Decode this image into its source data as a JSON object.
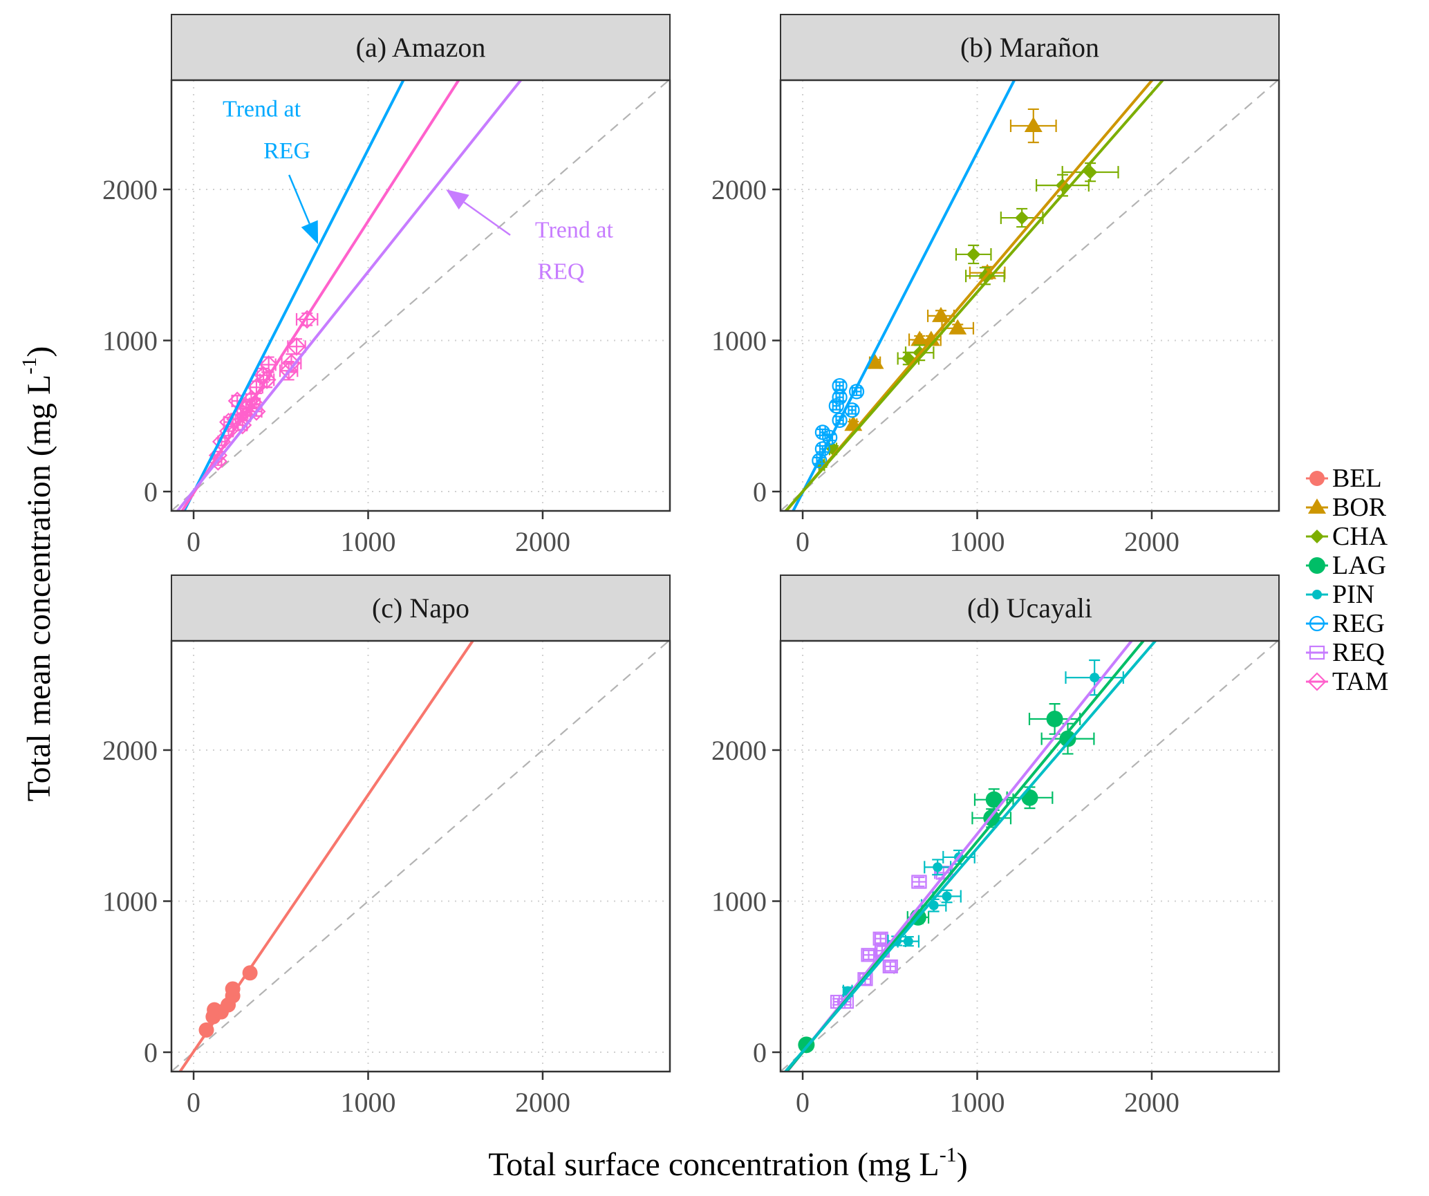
{
  "chart_data": {
    "type": "scatter",
    "layout": "2x2 faceted panels",
    "xlabel": "Total surface concentration (mg L",
    "xlabel_sup": "-1",
    "xlabel_tail": ")",
    "ylabel": "Total mean concentration  (mg L",
    "ylabel_sup": "-1",
    "ylabel_tail": ")",
    "xlim": [
      -127,
      2729
    ],
    "ylim": [
      -128,
      2723
    ],
    "xticks": [
      0,
      1000,
      2000
    ],
    "yticks": [
      0,
      1000,
      2000
    ],
    "grid": true,
    "identity_line": {
      "slope": 1,
      "intercept": 0,
      "style": "dashed",
      "color": "#b3b3b3"
    },
    "legend": {
      "position": "right",
      "entries": [
        {
          "label": "BEL",
          "color": "#F8766D",
          "shape": "circle-filled"
        },
        {
          "label": "BOR",
          "color": "#CD9600",
          "shape": "triangle-filled"
        },
        {
          "label": "CHA",
          "color": "#7CAE00",
          "shape": "diamond-filled"
        },
        {
          "label": "LAG",
          "color": "#00BE67",
          "shape": "circle-filled-large"
        },
        {
          "label": "PIN",
          "color": "#00BFC4",
          "shape": "circle-filled-small"
        },
        {
          "label": "REG",
          "color": "#00A9FF",
          "shape": "circle-open"
        },
        {
          "label": "REQ",
          "color": "#C77CFF",
          "shape": "square-open"
        },
        {
          "label": "TAM",
          "color": "#FF61CC",
          "shape": "diamond-open"
        }
      ]
    },
    "panels": [
      {
        "title": "(a) Amazon",
        "trends": [
          {
            "station": "REG",
            "slope": 2.27,
            "intercept": -5
          },
          {
            "station": "TAM",
            "slope": 1.8,
            "intercept": -10
          },
          {
            "station": "REQ",
            "slope": 1.45,
            "intercept": 5
          }
        ],
        "series": [
          {
            "station": "TAM",
            "points": [
              {
                "x": 650,
                "y": 1140,
                "xerr": 60,
                "yerr": 40
              },
              {
                "x": 590,
                "y": 960,
                "xerr": 50,
                "yerr": 50
              },
              {
                "x": 560,
                "y": 850,
                "xerr": 55,
                "yerr": 60
              },
              {
                "x": 545,
                "y": 800,
                "xerr": 50,
                "yerr": 60
              },
              {
                "x": 430,
                "y": 840,
                "xerr": 40,
                "yerr": 50
              },
              {
                "x": 420,
                "y": 740,
                "xerr": 40,
                "yerr": 50
              },
              {
                "x": 360,
                "y": 690,
                "xerr": 35,
                "yerr": 40
              },
              {
                "x": 400,
                "y": 770,
                "xerr": 35,
                "yerr": 45
              },
              {
                "x": 330,
                "y": 610,
                "xerr": 30,
                "yerr": 35
              },
              {
                "x": 300,
                "y": 560,
                "xerr": 30,
                "yerr": 35
              },
              {
                "x": 280,
                "y": 520,
                "xerr": 30,
                "yerr": 30
              },
              {
                "x": 250,
                "y": 600,
                "xerr": 30,
                "yerr": 35
              },
              {
                "x": 240,
                "y": 480,
                "xerr": 25,
                "yerr": 30
              },
              {
                "x": 280,
                "y": 440,
                "xerr": 25,
                "yerr": 30
              },
              {
                "x": 200,
                "y": 460,
                "xerr": 25,
                "yerr": 30
              },
              {
                "x": 200,
                "y": 400,
                "xerr": 25,
                "yerr": 30
              },
              {
                "x": 160,
                "y": 330,
                "xerr": 20,
                "yerr": 25
              },
              {
                "x": 140,
                "y": 240,
                "xerr": 20,
                "yerr": 25
              },
              {
                "x": 140,
                "y": 200,
                "xerr": 20,
                "yerr": 25
              },
              {
                "x": 300,
                "y": 500,
                "xerr": 25,
                "yerr": 30
              },
              {
                "x": 350,
                "y": 580,
                "xerr": 30,
                "yerr": 30
              },
              {
                "x": 360,
                "y": 530,
                "xerr": 30,
                "yerr": 30
              }
            ]
          }
        ],
        "annotations": [
          {
            "text_line1": "Trend at",
            "text_line2": "REG",
            "color": "#00A9FF",
            "line1_at": {
              "x": 390,
              "y": 2530
            },
            "line2_at": {
              "x": 535,
              "y": 2255
            },
            "arrow_from": {
              "x": 547,
              "y": 2096
            },
            "arrow_to": {
              "x": 713,
              "y": 1638
            }
          },
          {
            "text_line1": "Trend at",
            "text_line2": "REQ",
            "color": "#C77CFF",
            "line1_at": {
              "x": 2180,
              "y": 1730
            },
            "line2_at": {
              "x": 2105,
              "y": 1455
            },
            "arrow_from": {
              "x": 1814,
              "y": 1698
            },
            "arrow_to": {
              "x": 1446,
              "y": 2000
            }
          }
        ]
      },
      {
        "title": "(b) Marañon",
        "trends": [
          {
            "station": "REG",
            "slope": 2.25,
            "intercept": -5
          },
          {
            "station": "BOR",
            "slope": 1.36,
            "intercept": 0
          },
          {
            "station": "CHA",
            "slope": 1.32,
            "intercept": 0
          }
        ],
        "series": [
          {
            "station": "BOR",
            "points": [
              {
                "x": 1322,
                "y": 2421,
                "xerr": 130,
                "yerr": 110
              },
              {
                "x": 792,
                "y": 1163,
                "xerr": 75,
                "yerr": 35
              },
              {
                "x": 888,
                "y": 1081,
                "xerr": 90,
                "yerr": 25
              },
              {
                "x": 670,
                "y": 1005,
                "xerr": 60,
                "yerr": 25
              },
              {
                "x": 736,
                "y": 1005,
                "xerr": 55,
                "yerr": 25
              },
              {
                "x": 1058,
                "y": 1448,
                "xerr": 100,
                "yerr": 40
              },
              {
                "x": 414,
                "y": 853,
                "xerr": 30,
                "yerr": 20
              },
              {
                "x": 290,
                "y": 443,
                "xerr": 20,
                "yerr": 20
              }
            ]
          },
          {
            "station": "CHA",
            "points": [
              {
                "x": 1648,
                "y": 2114,
                "xerr": 160,
                "yerr": 60
              },
              {
                "x": 1489,
                "y": 2027,
                "xerr": 150,
                "yerr": 70
              },
              {
                "x": 1256,
                "y": 1812,
                "xerr": 120,
                "yerr": 60
              },
              {
                "x": 979,
                "y": 1570,
                "xerr": 100,
                "yerr": 60
              },
              {
                "x": 1045,
                "y": 1427,
                "xerr": 110,
                "yerr": 55
              },
              {
                "x": 605,
                "y": 881,
                "xerr": 60,
                "yerr": 40
              },
              {
                "x": 670,
                "y": 919,
                "xerr": 80,
                "yerr": 50
              },
              {
                "x": 174,
                "y": 282,
                "xerr": 20,
                "yerr": 20
              },
              {
                "x": 109,
                "y": 177,
                "xerr": 15,
                "yerr": 15
              }
            ]
          },
          {
            "station": "REG",
            "points": [
              {
                "x": 212,
                "y": 700,
                "xerr": 20,
                "yerr": 25
              },
              {
                "x": 309,
                "y": 662,
                "xerr": 25,
                "yerr": 25
              },
              {
                "x": 212,
                "y": 624,
                "xerr": 20,
                "yerr": 25
              },
              {
                "x": 193,
                "y": 567,
                "xerr": 20,
                "yerr": 25
              },
              {
                "x": 283,
                "y": 539,
                "xerr": 20,
                "yerr": 25
              },
              {
                "x": 212,
                "y": 472,
                "xerr": 20,
                "yerr": 25
              },
              {
                "x": 114,
                "y": 392,
                "xerr": 15,
                "yerr": 20
              },
              {
                "x": 155,
                "y": 358,
                "xerr": 15,
                "yerr": 20
              },
              {
                "x": 114,
                "y": 282,
                "xerr": 15,
                "yerr": 20
              },
              {
                "x": 96,
                "y": 205,
                "xerr": 15,
                "yerr": 20
              }
            ]
          }
        ],
        "annotations": []
      },
      {
        "title": "(c) Napo",
        "trends": [
          {
            "station": "BEL",
            "slope": 1.7,
            "intercept": 4
          }
        ],
        "series": [
          {
            "station": "BEL",
            "points": [
              {
                "x": 73,
                "y": 147,
                "xerr": 8,
                "yerr": 10
              },
              {
                "x": 112,
                "y": 235,
                "xerr": 10,
                "yerr": 12
              },
              {
                "x": 119,
                "y": 281,
                "xerr": 10,
                "yerr": 12
              },
              {
                "x": 158,
                "y": 267,
                "xerr": 12,
                "yerr": 12
              },
              {
                "x": 198,
                "y": 313,
                "xerr": 12,
                "yerr": 15
              },
              {
                "x": 224,
                "y": 373,
                "xerr": 12,
                "yerr": 15
              },
              {
                "x": 224,
                "y": 419,
                "xerr": 12,
                "yerr": 15
              },
              {
                "x": 323,
                "y": 525,
                "xerr": 15,
                "yerr": 18
              }
            ]
          }
        ],
        "annotations": []
      },
      {
        "title": "(d) Ucayali",
        "trends": [
          {
            "station": "REQ",
            "slope": 1.445,
            "intercept": 0
          },
          {
            "station": "LAG",
            "slope": 1.395,
            "intercept": 0
          },
          {
            "station": "PIN",
            "slope": 1.345,
            "intercept": 5
          }
        ],
        "series": [
          {
            "station": "REQ",
            "points": [
              {
                "x": 667,
                "y": 1128,
                "xerr": 40,
                "yerr": 30
              },
              {
                "x": 807,
                "y": 1188,
                "xerr": 50,
                "yerr": 35
              },
              {
                "x": 446,
                "y": 752,
                "xerr": 30,
                "yerr": 30
              },
              {
                "x": 378,
                "y": 644,
                "xerr": 30,
                "yerr": 30
              },
              {
                "x": 502,
                "y": 568,
                "xerr": 30,
                "yerr": 30
              },
              {
                "x": 455,
                "y": 672,
                "xerr": 30,
                "yerr": 30
              },
              {
                "x": 358,
                "y": 484,
                "xerr": 30,
                "yerr": 35
              },
              {
                "x": 202,
                "y": 334,
                "xerr": 25,
                "yerr": 20
              },
              {
                "x": 249,
                "y": 334,
                "xerr": 25,
                "yerr": 20
              }
            ]
          },
          {
            "station": "LAG",
            "points": [
              {
                "x": 21,
                "y": 49,
                "xerr": 5,
                "yerr": 5
              },
              {
                "x": 661,
                "y": 893,
                "xerr": 60,
                "yerr": 40
              },
              {
                "x": 1096,
                "y": 1672,
                "xerr": 110,
                "yerr": 70
              },
              {
                "x": 1082,
                "y": 1550,
                "xerr": 110,
                "yerr": 60
              },
              {
                "x": 1301,
                "y": 1685,
                "xerr": 130,
                "yerr": 70
              },
              {
                "x": 1444,
                "y": 2206,
                "xerr": 145,
                "yerr": 100
              },
              {
                "x": 1519,
                "y": 2075,
                "xerr": 150,
                "yerr": 100
              }
            ]
          },
          {
            "station": "PIN",
            "points": [
              {
                "x": 1672,
                "y": 2480,
                "xerr": 165,
                "yerr": 115
              },
              {
                "x": 826,
                "y": 1032,
                "xerr": 80,
                "yerr": 40
              },
              {
                "x": 751,
                "y": 972,
                "xerr": 70,
                "yerr": 40
              },
              {
                "x": 605,
                "y": 734,
                "xerr": 60,
                "yerr": 30
              },
              {
                "x": 773,
                "y": 1225,
                "xerr": 75,
                "yerr": 50
              },
              {
                "x": 895,
                "y": 1291,
                "xerr": 90,
                "yerr": 45
              },
              {
                "x": 258,
                "y": 405,
                "xerr": 25,
                "yerr": 25
              },
              {
                "x": 539,
                "y": 737,
                "xerr": 50,
                "yerr": 30
              }
            ]
          }
        ],
        "annotations": []
      }
    ]
  }
}
